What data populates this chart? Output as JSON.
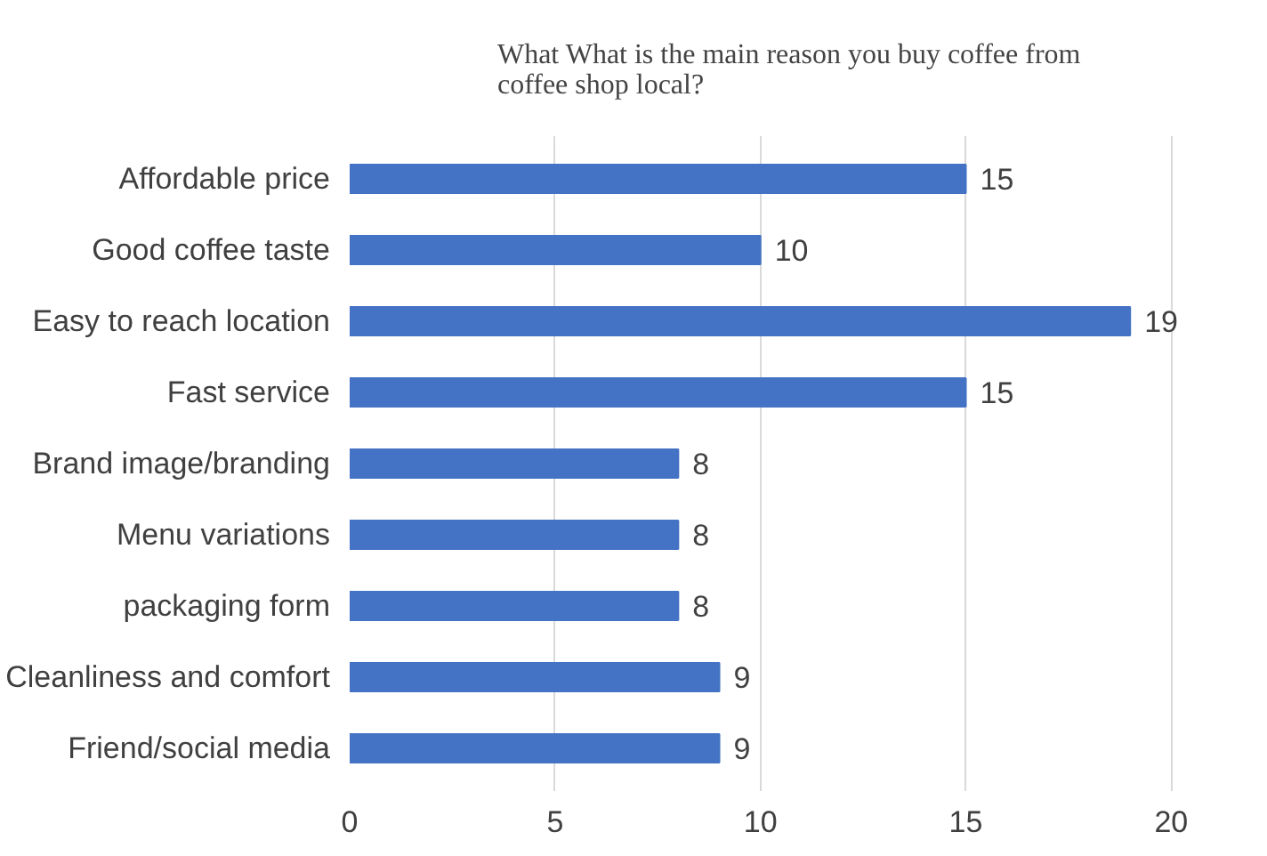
{
  "chart_data": {
    "type": "bar",
    "orientation": "horizontal",
    "title": "What What is the main reason you buy coffee from coffee shop local?",
    "categories": [
      "Affordable price",
      "Good coffee taste",
      "Easy to reach location",
      "Fast service",
      "Brand image/branding",
      "Menu variations",
      "packaging form",
      "Cleanliness and comfort",
      "Friend/social media"
    ],
    "values": [
      15,
      10,
      19,
      15,
      8,
      8,
      8,
      9,
      9
    ],
    "color": "#4472c4",
    "xlim": [
      0,
      20
    ],
    "xticks": [
      0,
      5,
      10,
      15,
      20
    ],
    "grid": "x",
    "data_labels": true
  }
}
